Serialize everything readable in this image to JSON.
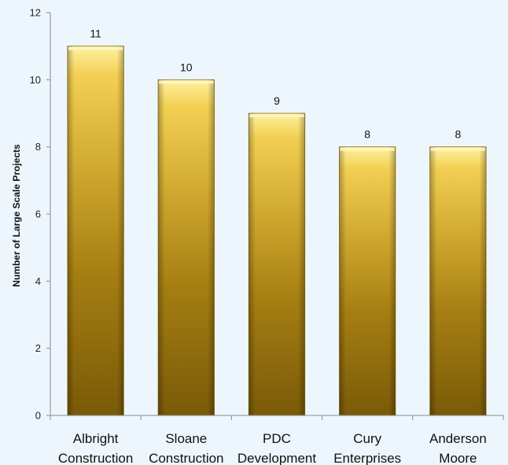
{
  "chart_data": {
    "type": "bar",
    "categories": [
      "Albright Construction",
      "Sloane Construction",
      "PDC Development",
      "Cury Enterprises",
      "Anderson Moore"
    ],
    "category_lines": [
      [
        "Albright",
        "Construction"
      ],
      [
        "Sloane",
        "Construction"
      ],
      [
        "PDC",
        "Development"
      ],
      [
        "Cury",
        "Enterprises"
      ],
      [
        "Anderson",
        "Moore"
      ]
    ],
    "values": [
      11,
      10,
      9,
      8,
      8
    ],
    "data_labels": [
      "11",
      "10",
      "9",
      "8",
      "8"
    ],
    "ylabel": "Number of Large Scale Projects",
    "xlabel": "",
    "ylim": [
      0,
      12
    ],
    "yticks": [
      0,
      2,
      4,
      6,
      8,
      10,
      12
    ],
    "grid": false,
    "legend": "none",
    "colors": {
      "background": "#eef6fd",
      "bar_top": "#fff1a0",
      "bar_light": "#f2cf52",
      "bar_mid": "#c9a12a",
      "bar_dark": "#a57e12",
      "bar_bottom": "#7a5a08",
      "axis": "#8a8a8a",
      "text": "#111111"
    }
  }
}
